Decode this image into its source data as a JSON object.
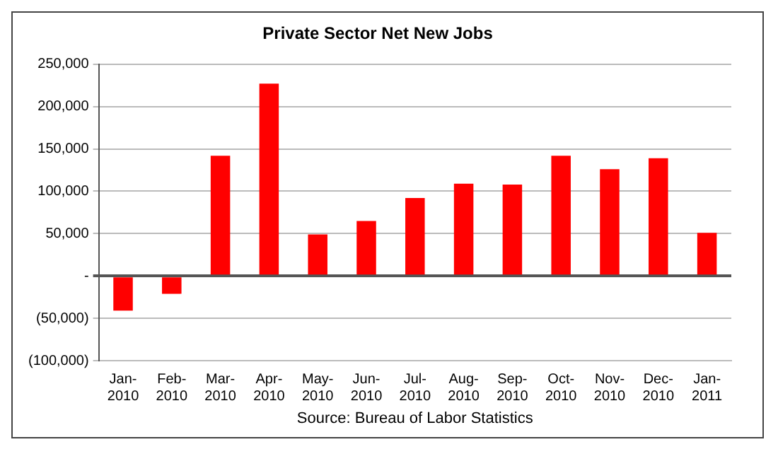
{
  "chart_data": {
    "type": "bar",
    "title": "Private Sector Net New Jobs",
    "categories": [
      "Jan-2010",
      "Feb-2010",
      "Mar-2010",
      "Apr-2010",
      "May-2010",
      "Jun-2010",
      "Jul-2010",
      "Aug-2010",
      "Sep-2010",
      "Oct-2010",
      "Nov-2010",
      "Dec-2010",
      "Jan-2011"
    ],
    "values": [
      -41000,
      -21000,
      142000,
      227000,
      49000,
      65000,
      92000,
      109000,
      108000,
      142000,
      126000,
      139000,
      51000
    ],
    "color": "#ff0000",
    "ylim": [
      -100000,
      250000
    ],
    "yticks": [
      {
        "value": -100000,
        "label": "(100,000)"
      },
      {
        "value": -50000,
        "label": "(50,000)"
      },
      {
        "value": 0,
        "label": "-"
      },
      {
        "value": 50000,
        "label": "50,000"
      },
      {
        "value": 100000,
        "label": "100,000"
      },
      {
        "value": 150000,
        "label": "150,000"
      },
      {
        "value": 200000,
        "label": "200,000"
      },
      {
        "value": 250000,
        "label": "250,000"
      }
    ],
    "grid": "y",
    "annotations": [
      "Source: Bureau of Labor Statistics"
    ]
  }
}
